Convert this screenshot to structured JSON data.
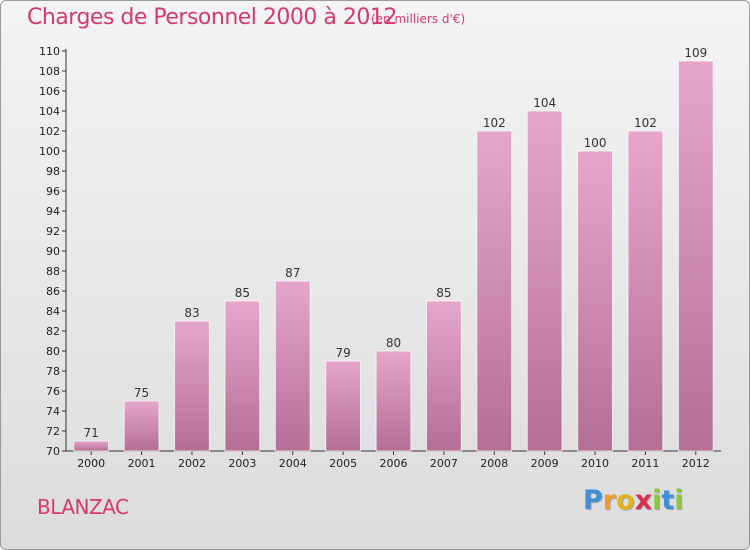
{
  "header": {
    "title": "Charges de Personnel 2000 à 2012",
    "unit": "(en milliers d'€)"
  },
  "footer": {
    "commune": "BLANZAC",
    "brand_letters": [
      "P",
      "r",
      "o",
      "x",
      "i",
      "t",
      "i"
    ]
  },
  "colors": {
    "title": "#d63a6b",
    "bar_top": "#e6a6cc",
    "bar_bottom": "#b46e98",
    "brand_letters": [
      "#3f8fd6",
      "#f09a2a",
      "#e2b21d",
      "#d4304f",
      "#8cc63f",
      "#3f8fd6",
      "#8cc63f"
    ]
  },
  "chart_data": {
    "type": "bar",
    "categories": [
      "2000",
      "2001",
      "2002",
      "2003",
      "2004",
      "2005",
      "2006",
      "2007",
      "2008",
      "2009",
      "2010",
      "2011",
      "2012"
    ],
    "values": [
      71,
      75,
      83,
      85,
      87,
      79,
      80,
      85,
      102,
      104,
      100,
      102,
      109
    ],
    "title": "Charges de Personnel 2000 à 2012",
    "ylim": [
      70,
      110
    ],
    "ytick_step": 2,
    "grid": false,
    "data_labels": true
  }
}
